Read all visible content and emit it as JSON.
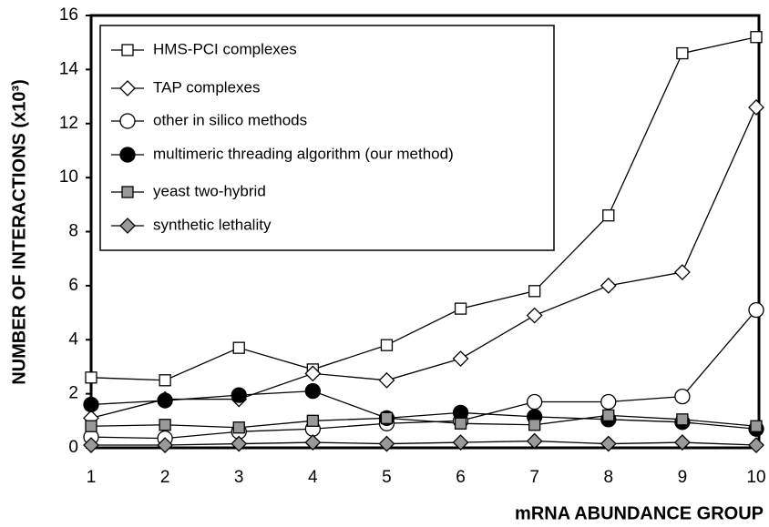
{
  "chart_data": {
    "type": "line",
    "xlabel": "mRNA ABUNDANCE GROUP",
    "ylabel": "NUMBER OF INTERACTIONS (x10³)",
    "x": [
      1,
      2,
      3,
      4,
      5,
      6,
      7,
      8,
      9,
      10
    ],
    "xlim": [
      1,
      10
    ],
    "xticks": [
      1,
      2,
      3,
      4,
      5,
      6,
      7,
      8,
      9,
      10
    ],
    "ylim": [
      0,
      16
    ],
    "yticks": [
      0,
      2,
      4,
      6,
      8,
      10,
      12,
      14,
      16
    ],
    "grid": false,
    "legend": "upper left",
    "series": [
      {
        "name": "HMS-PCI complexes",
        "marker": "square",
        "color": "#ffffff",
        "values": [
          2.6,
          2.5,
          3.7,
          2.9,
          3.8,
          5.15,
          5.8,
          8.6,
          14.6,
          15.2
        ]
      },
      {
        "name": "TAP complexes",
        "marker": "diamond",
        "color": "#ffffff",
        "values": [
          1.1,
          1.8,
          1.8,
          2.75,
          2.5,
          3.3,
          4.9,
          6.0,
          6.5,
          12.6
        ]
      },
      {
        "name": "other in silico methods",
        "marker": "circle",
        "color": "#ffffff",
        "values": [
          0.4,
          0.35,
          0.6,
          0.7,
          0.9,
          1.0,
          1.7,
          1.7,
          1.9,
          5.1
        ]
      },
      {
        "name": "multimeric threading algorithm (our method)",
        "marker": "circle",
        "color": "#000000",
        "values": [
          1.6,
          1.75,
          1.95,
          2.1,
          1.1,
          1.3,
          1.15,
          1.05,
          0.95,
          0.7
        ]
      },
      {
        "name": "yeast two-hybrid",
        "marker": "square",
        "color": "#999999",
        "values": [
          0.8,
          0.85,
          0.75,
          1.0,
          1.1,
          0.9,
          0.85,
          1.2,
          1.05,
          0.8
        ]
      },
      {
        "name": "synthetic lethality",
        "marker": "diamond",
        "color": "#999999",
        "values": [
          0.1,
          0.1,
          0.15,
          0.2,
          0.15,
          0.2,
          0.25,
          0.15,
          0.2,
          0.1
        ]
      }
    ]
  }
}
